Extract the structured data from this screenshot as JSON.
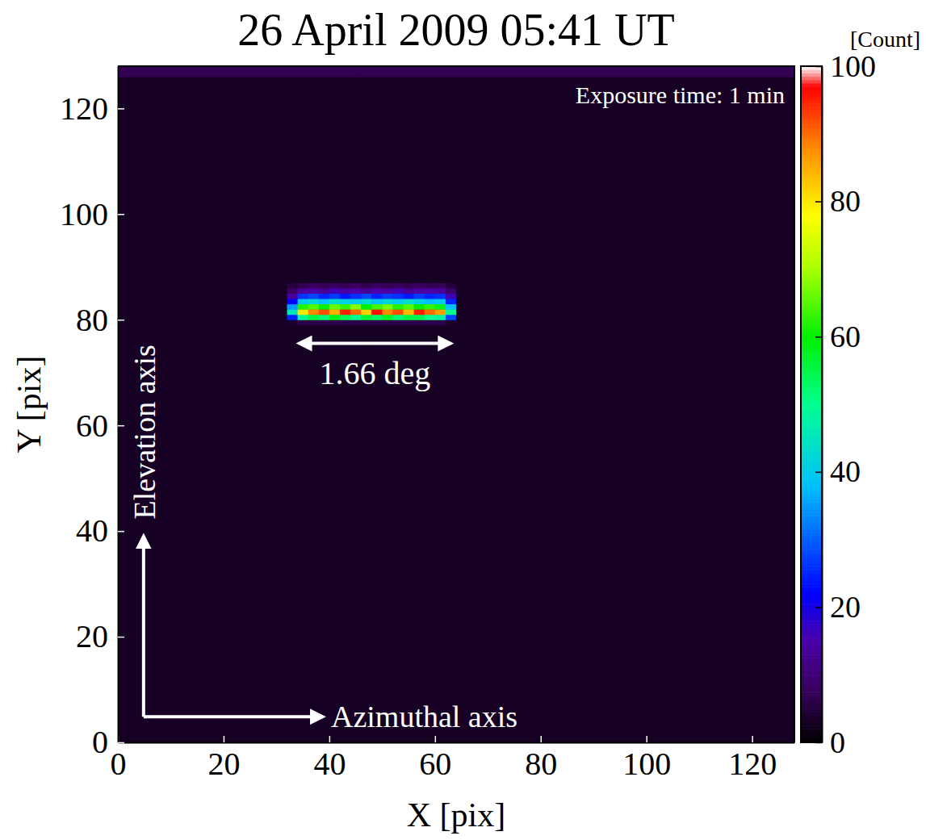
{
  "chart_data": {
    "type": "heatmap",
    "title": "26 April 2009 05:41 UT",
    "x_label": "X [pix]",
    "y_label": "Y [pix]",
    "xlim": [
      0,
      128
    ],
    "ylim": [
      0,
      128
    ],
    "xticks": [
      0,
      20,
      40,
      60,
      80,
      100,
      120
    ],
    "yticks": [
      0,
      20,
      40,
      60,
      80,
      100,
      120
    ],
    "xbins": [
      0,
      32,
      34,
      36,
      38,
      40,
      42,
      44,
      46,
      48,
      50,
      52,
      54,
      56,
      58,
      60,
      62,
      64,
      128
    ],
    "ybins": [
      0,
      79,
      80,
      81,
      82,
      83,
      84,
      85,
      86,
      87,
      126,
      128
    ],
    "z": [
      [
        3,
        3,
        3,
        3,
        3,
        3,
        3,
        3,
        3,
        3,
        3,
        3,
        3,
        3,
        3,
        3,
        3,
        3
      ],
      [
        3,
        4,
        6,
        6,
        6,
        6,
        6,
        6,
        6,
        6,
        6,
        6,
        6,
        6,
        6,
        6,
        4,
        3
      ],
      [
        3,
        25,
        50,
        55,
        52,
        58,
        54,
        50,
        56,
        53,
        57,
        52,
        55,
        54,
        50,
        48,
        28,
        3
      ],
      [
        3,
        45,
        80,
        88,
        92,
        85,
        95,
        90,
        82,
        96,
        88,
        92,
        84,
        95,
        90,
        86,
        50,
        3
      ],
      [
        3,
        35,
        62,
        65,
        60,
        66,
        63,
        68,
        60,
        64,
        67,
        62,
        65,
        60,
        63,
        58,
        38,
        3
      ],
      [
        3,
        22,
        40,
        42,
        38,
        44,
        41,
        40,
        43,
        39,
        42,
        40,
        44,
        41,
        38,
        40,
        25,
        3
      ],
      [
        3,
        14,
        26,
        28,
        25,
        27,
        24,
        26,
        28,
        25,
        27,
        26,
        24,
        27,
        25,
        26,
        16,
        3
      ],
      [
        3,
        8,
        14,
        15,
        13,
        16,
        14,
        15,
        13,
        15,
        14,
        16,
        13,
        14,
        15,
        14,
        9,
        3
      ],
      [
        3,
        5,
        7,
        8,
        7,
        8,
        7,
        8,
        7,
        8,
        7,
        8,
        7,
        8,
        7,
        8,
        5,
        3
      ],
      [
        3,
        3,
        3,
        3,
        3,
        3,
        3,
        3,
        3,
        3,
        3,
        3,
        3,
        3,
        3,
        3,
        3,
        3
      ],
      [
        7,
        7,
        7,
        7,
        7,
        7,
        7,
        7,
        7,
        7,
        7,
        7,
        7,
        7,
        7,
        7,
        7,
        7
      ]
    ],
    "colorbar": {
      "label": "[Count]",
      "range": [
        0,
        100
      ],
      "ticks": [
        0,
        20,
        40,
        60,
        80,
        100
      ]
    },
    "annotations": [
      "Exposure time: 1 min",
      "1.66 deg",
      "Elevation axis",
      "Azimuthal axis"
    ]
  }
}
